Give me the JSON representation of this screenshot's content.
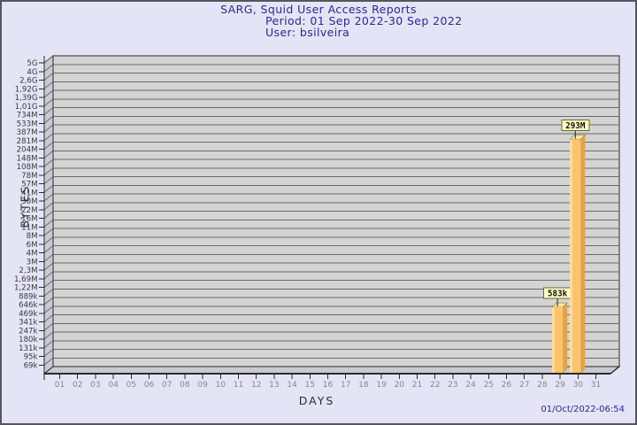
{
  "header": {
    "title": "SARG, Squid User Access Reports",
    "period": "Period: 01 Sep 2022-30 Sep 2022",
    "user": "User: bsilveira"
  },
  "footer": {
    "timestamp": "01/Oct/2022-06:54"
  },
  "chart_data": {
    "type": "bar",
    "title": "SARG, Squid User Access Reports",
    "subtitle_period": "Period: 01 Sep 2022-30 Sep 2022",
    "subtitle_user": "User: bsilveira",
    "xlabel": "DAYS",
    "ylabel": "BYTES",
    "x_tick_labels": [
      "01",
      "02",
      "03",
      "04",
      "05",
      "06",
      "07",
      "08",
      "09",
      "10",
      "11",
      "12",
      "13",
      "14",
      "15",
      "16",
      "17",
      "18",
      "19",
      "20",
      "21",
      "22",
      "23",
      "24",
      "25",
      "26",
      "27",
      "28",
      "29",
      "30",
      "31"
    ],
    "y_tick_labels": [
      "5G",
      "4G",
      "2,6G",
      "1,92G",
      "1,39G",
      "1,01G",
      "734M",
      "533M",
      "387M",
      "281M",
      "204M",
      "148M",
      "108M",
      "78M",
      "57M",
      "41M",
      "30M",
      "22M",
      "16M",
      "11M",
      "8M",
      "6M",
      "4M",
      "3M",
      "2,3M",
      "1,69M",
      "1,22M",
      "889k",
      "646k",
      "469k",
      "341k",
      "247k",
      "180k",
      "131k",
      "95k",
      "69k"
    ],
    "y_scale": {
      "type": "log",
      "top_value": 5000000000,
      "ratio_per_step": 1.377
    },
    "grid": true,
    "series": [
      {
        "name": "bytes-per-day",
        "points": [
          {
            "day": 29,
            "value": 583000,
            "label": "583k"
          },
          {
            "day": 30,
            "value": 293000000,
            "label": "293M"
          }
        ]
      }
    ]
  },
  "colors": {
    "page_bg": "#e4e4f6",
    "frame_border": "#56565c",
    "title_text": "#28289b",
    "back_wall": "#d4d4d4",
    "side_wall": "#c9c9d2",
    "grid_line": "#6a6a6a",
    "axis_line": "#2a2a2a",
    "y_tick_text": "#3a3a3a",
    "x_tick_text": "#878787",
    "bar_front": "#fbc36b",
    "bar_highlight": "#ffdfa0",
    "bar_side": "#dfa44c",
    "bar_top": "#f8e59a",
    "value_box_bg": "#ffffc4",
    "value_box_border": "#6b6b2a",
    "value_text": "#111111"
  }
}
